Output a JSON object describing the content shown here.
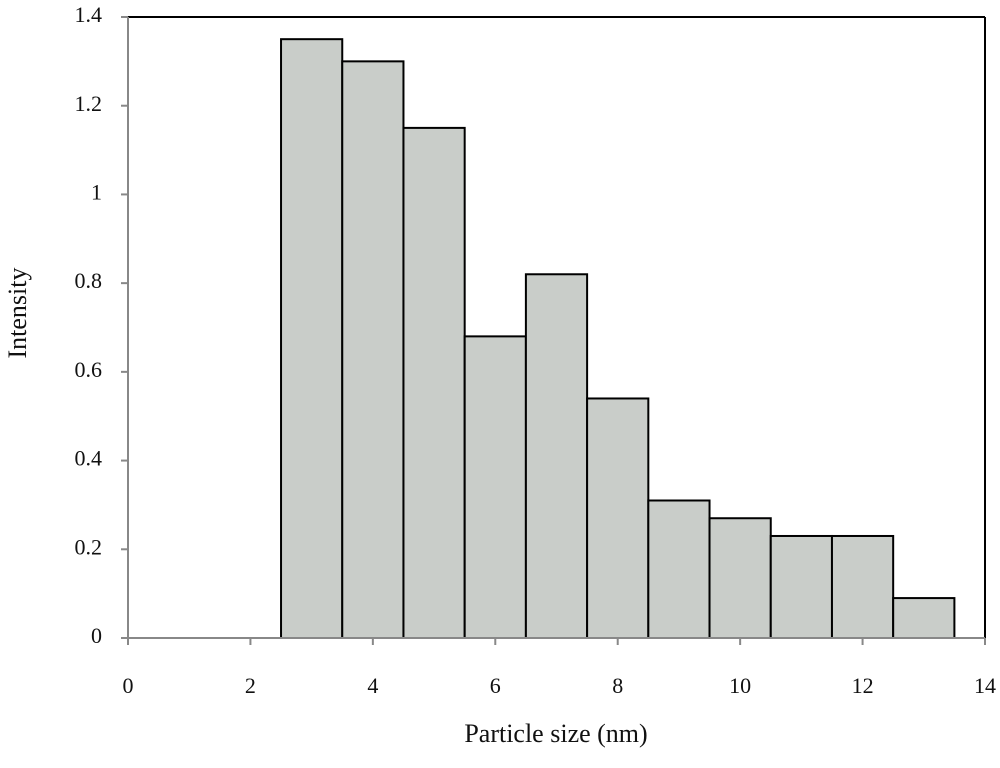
{
  "chart_data": {
    "type": "histogram",
    "xlabel": "Particle size (nm)",
    "ylabel": "Intensity",
    "bins": [
      2.5,
      3.5,
      4.5,
      5.5,
      6.5,
      7.5,
      8.5,
      9.5,
      10.5,
      11.5,
      12.5,
      13.5
    ],
    "values": [
      1.35,
      1.3,
      1.15,
      0.68,
      0.82,
      0.54,
      0.31,
      0.27,
      0.23,
      0.23,
      0.09
    ],
    "color": "#c9cdc9",
    "xlim": [
      0,
      14
    ],
    "xticks": [
      0,
      2,
      4,
      6,
      8,
      10,
      12,
      14
    ],
    "ylim": [
      0,
      1.4
    ],
    "yticks": [
      0,
      0.2,
      0.4,
      0.6,
      0.8,
      1,
      1.2,
      1.4
    ]
  }
}
